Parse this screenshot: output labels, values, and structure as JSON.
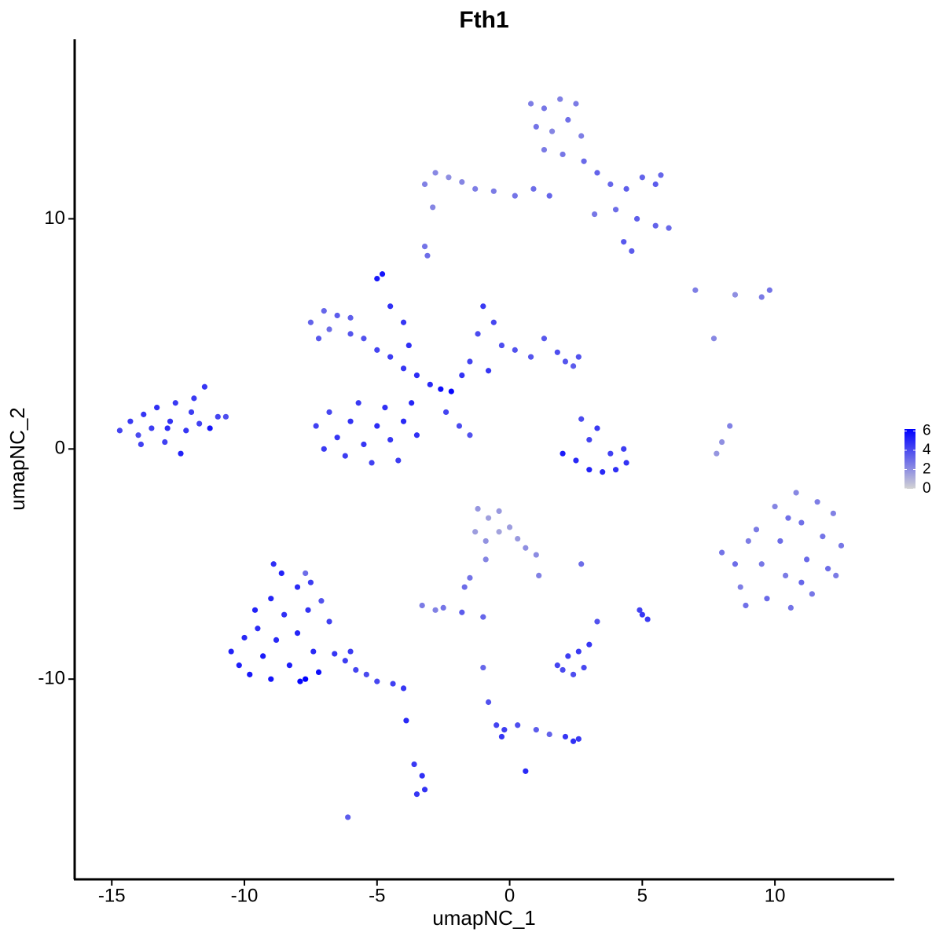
{
  "chart_data": {
    "type": "scatter",
    "title": "Fth1",
    "x_label": "umapNC_1",
    "y_label": "umapNC_2",
    "xlim": [
      -16.4,
      14.5
    ],
    "ylim": [
      -18.7,
      17.8
    ],
    "xticks": [
      -15,
      -10,
      -5,
      0,
      5,
      10
    ],
    "yticks": [
      -10,
      0,
      10
    ],
    "color_low": "#d3d3d3",
    "color_high": "#0000ff",
    "color_lim": [
      0,
      6.2
    ],
    "color_ticks": [
      0,
      2,
      4,
      6
    ],
    "x": [
      -14.7,
      -14.3,
      -14.0,
      -13.8,
      -13.5,
      -13.3,
      -13.0,
      -12.8,
      -12.6,
      -12.4,
      -12.2,
      -12.0,
      -11.7,
      -11.5,
      -11.3,
      -11.0,
      -10.7,
      -13.9,
      -12.9,
      -11.9,
      -7.5,
      -7.0,
      -6.5,
      -6.0,
      -7.2,
      -6.8,
      -6.0,
      -5.5,
      -5.0,
      -4.5,
      -4.0,
      -3.5,
      -3.0,
      -2.6,
      -2.2,
      -5.0,
      -4.8,
      -4.5,
      -4.0,
      -3.8,
      -7.3,
      -7.0,
      -6.8,
      -6.5,
      -6.2,
      -6.0,
      -5.7,
      -5.5,
      -5.2,
      -5.0,
      -4.7,
      -4.5,
      -4.2,
      -4.0,
      -3.7,
      -3.5,
      -1.5,
      -1.2,
      -1.0,
      -0.6,
      -0.3,
      0.2,
      0.8,
      1.3,
      1.8,
      2.1,
      2.4,
      2.6,
      -0.8,
      -1.8,
      -2.4,
      -1.9,
      -1.5,
      0.8,
      1.3,
      1.9,
      2.5,
      1.0,
      1.6,
      2.2,
      2.7,
      1.3,
      2.0,
      -3.2,
      -2.8,
      -2.3,
      -1.8,
      -1.3,
      -0.6,
      0.2,
      0.9,
      1.5,
      -2.9,
      2.8,
      3.3,
      3.8,
      4.4,
      5.0,
      5.5,
      5.7,
      4.0,
      4.8,
      5.5,
      6.0,
      4.3,
      4.6,
      3.2,
      -3.1,
      -3.2,
      2.0,
      2.5,
      3.0,
      3.5,
      4.0,
      4.4,
      3.0,
      3.3,
      3.8,
      2.7,
      4.3,
      8.3,
      8.0,
      7.8,
      7.0,
      8.5,
      9.5,
      9.8,
      7.7,
      8.0,
      8.5,
      8.7,
      8.9,
      9.3,
      9.5,
      9.7,
      10.0,
      10.2,
      10.4,
      10.6,
      10.8,
      11.0,
      11.2,
      11.4,
      11.6,
      11.8,
      12.0,
      12.2,
      12.5,
      12.3,
      9.0,
      10.5,
      11.0,
      -1.2,
      -0.8,
      -0.4,
      -1.3,
      -0.9,
      -0.4,
      0.0,
      0.3,
      0.6,
      1.0,
      1.1,
      -0.9,
      -1.5,
      -1.7,
      -3.3,
      -2.8,
      -2.5,
      -1.8,
      -1.0,
      2.7,
      -10.5,
      -10.2,
      -10.0,
      -9.8,
      -9.5,
      -9.3,
      -9.0,
      -9.0,
      -8.8,
      -8.6,
      -8.5,
      -8.3,
      -8.0,
      -8.0,
      -7.9,
      -7.7,
      -7.6,
      -7.5,
      -7.4,
      -7.2,
      -7.1,
      -6.8,
      -6.6,
      -6.2,
      -5.8,
      -5.4,
      -5.0,
      -4.4,
      -4.0,
      -6.0,
      -9.6,
      -8.9,
      -7.7,
      -3.9,
      -3.6,
      -3.3,
      -3.5,
      -3.2,
      -6.1,
      0.6,
      -0.8,
      -0.5,
      -0.3,
      -0.2,
      0.3,
      1.0,
      1.5,
      2.1,
      2.4,
      2.6,
      -1.0,
      1.8,
      2.0,
      2.2,
      2.4,
      2.6,
      2.8,
      3.0,
      3.3,
      5.0,
      5.2,
      4.9
    ],
    "y": [
      0.8,
      1.2,
      0.6,
      1.5,
      0.9,
      1.8,
      0.3,
      1.2,
      2.0,
      -0.2,
      0.8,
      1.6,
      1.1,
      2.7,
      0.9,
      1.4,
      1.4,
      0.2,
      0.9,
      2.2,
      5.5,
      6.0,
      5.8,
      5.7,
      4.8,
      5.2,
      5.0,
      4.8,
      4.3,
      4.0,
      3.5,
      3.2,
      2.8,
      2.6,
      2.5,
      7.4,
      7.6,
      6.2,
      5.5,
      4.5,
      1.0,
      0.0,
      1.6,
      0.5,
      -0.3,
      1.2,
      2.0,
      0.2,
      -0.6,
      1.0,
      1.8,
      0.4,
      -0.5,
      1.2,
      2.0,
      0.6,
      3.8,
      5.0,
      6.2,
      5.5,
      4.5,
      4.3,
      4.0,
      4.8,
      4.2,
      3.8,
      3.6,
      4.0,
      3.4,
      3.2,
      1.6,
      1.0,
      0.6,
      15.0,
      14.8,
      15.2,
      15.0,
      14.0,
      13.8,
      14.3,
      13.6,
      13.0,
      12.8,
      11.5,
      12.0,
      11.8,
      11.6,
      11.3,
      11.2,
      11.0,
      11.3,
      11.0,
      10.5,
      12.5,
      12.0,
      11.5,
      11.3,
      11.8,
      11.5,
      11.9,
      10.4,
      10.0,
      9.7,
      9.6,
      9.0,
      8.6,
      10.2,
      8.4,
      8.8,
      -0.2,
      -0.5,
      -0.9,
      -1.0,
      -0.9,
      -0.6,
      0.4,
      0.9,
      -0.2,
      1.3,
      0.0,
      1.0,
      0.3,
      -0.2,
      6.9,
      6.7,
      6.6,
      6.9,
      4.8,
      -4.5,
      -5.0,
      -6.0,
      -6.8,
      -3.5,
      -5.0,
      -6.5,
      -2.5,
      -4.0,
      -5.5,
      -6.9,
      -1.9,
      -3.2,
      -4.8,
      -6.3,
      -2.3,
      -3.8,
      -5.2,
      -2.8,
      -4.2,
      -5.5,
      -4.0,
      -3.0,
      -5.8,
      -2.6,
      -3.0,
      -2.7,
      -3.6,
      -4.0,
      -3.6,
      -3.4,
      -3.9,
      -4.3,
      -4.6,
      -5.5,
      -4.8,
      -5.6,
      -6.0,
      -6.8,
      -7.0,
      -6.9,
      -7.1,
      -7.3,
      -5.0,
      -8.8,
      -9.4,
      -8.2,
      -9.8,
      -7.8,
      -9.0,
      -6.5,
      -10.0,
      -8.3,
      -5.4,
      -7.2,
      -9.4,
      -6.0,
      -8.0,
      -10.1,
      -10.0,
      -7.0,
      -5.8,
      -8.8,
      -9.7,
      -6.6,
      -7.5,
      -8.9,
      -9.2,
      -9.6,
      -9.8,
      -10.1,
      -10.2,
      -10.4,
      -8.8,
      -7.0,
      -5.0,
      -5.4,
      -11.8,
      -13.7,
      -14.2,
      -15.0,
      -14.8,
      -16.0,
      -14.0,
      -11.0,
      -12.0,
      -12.5,
      -12.2,
      -12.0,
      -12.2,
      -12.4,
      -12.5,
      -12.7,
      -12.6,
      -9.5,
      -9.4,
      -9.6,
      -9.0,
      -9.8,
      -8.8,
      -9.5,
      -8.5,
      -7.5,
      -7.2,
      -7.4,
      -7.0
    ],
    "values": [
      4.2,
      4.5,
      4.0,
      4.6,
      4.4,
      4.8,
      4.3,
      4.7,
      4.5,
      5.2,
      4.6,
      4.4,
      4.3,
      4.6,
      5.6,
      4.2,
      3.9,
      4.3,
      4.9,
      4.5,
      3.3,
      3.2,
      3.5,
      3.4,
      3.6,
      3.0,
      3.7,
      3.8,
      4.2,
      4.4,
      4.6,
      4.9,
      5.0,
      5.8,
      6.0,
      5.5,
      5.6,
      4.8,
      4.6,
      4.8,
      4.3,
      4.5,
      4.1,
      4.6,
      4.4,
      4.7,
      4.5,
      4.6,
      4.3,
      4.9,
      4.8,
      4.6,
      4.4,
      5.0,
      5.1,
      4.8,
      4.2,
      4.0,
      4.5,
      4.1,
      3.9,
      3.8,
      3.7,
      3.6,
      3.9,
      3.7,
      3.5,
      3.8,
      4.6,
      4.7,
      4.2,
      4.0,
      3.8,
      2.5,
      2.7,
      2.4,
      2.6,
      2.8,
      2.3,
      2.9,
      2.5,
      2.6,
      2.7,
      2.4,
      2.2,
      2.0,
      2.3,
      2.5,
      2.6,
      2.8,
      3.0,
      3.2,
      2.3,
      3.1,
      3.3,
      3.2,
      3.4,
      3.3,
      3.5,
      3.2,
      3.0,
      3.4,
      3.3,
      3.1,
      3.6,
      3.5,
      2.7,
      3.0,
      2.8,
      5.4,
      5.0,
      5.2,
      5.0,
      4.8,
      4.7,
      4.2,
      4.5,
      4.3,
      4.0,
      4.4,
      2.4,
      2.0,
      1.8,
      2.5,
      2.0,
      2.6,
      2.8,
      2.2,
      2.8,
      3.0,
      2.5,
      2.9,
      2.6,
      2.7,
      3.1,
      2.3,
      3.0,
      2.6,
      2.8,
      2.2,
      2.9,
      3.1,
      2.7,
      2.5,
      2.8,
      3.0,
      2.4,
      2.7,
      2.6,
      2.5,
      2.9,
      3.2,
      1.8,
      1.5,
      1.7,
      1.6,
      1.9,
      1.4,
      1.6,
      1.7,
      2.0,
      2.1,
      2.4,
      2.3,
      2.8,
      3.0,
      2.6,
      2.4,
      2.8,
      3.5,
      3.2,
      3.0,
      5.2,
      5.3,
      5.0,
      5.5,
      4.9,
      5.4,
      5.1,
      5.6,
      5.0,
      5.2,
      4.8,
      5.3,
      4.9,
      5.1,
      6.0,
      6.2,
      4.7,
      4.4,
      5.0,
      5.8,
      3.8,
      4.3,
      4.6,
      4.4,
      4.2,
      4.0,
      4.1,
      4.3,
      4.6,
      4.5,
      5.2,
      4.8,
      3.0,
      5.0,
      4.5,
      4.8,
      4.6,
      4.7,
      3.5,
      5.0,
      3.8,
      4.2,
      4.6,
      4.4,
      3.9,
      3.5,
      3.3,
      4.6,
      4.8,
      4.5,
      3.2,
      4.2,
      4.0,
      4.4,
      3.9,
      4.5,
      4.1,
      4.6,
      3.8,
      4.6,
      4.5,
      4.3
    ]
  }
}
